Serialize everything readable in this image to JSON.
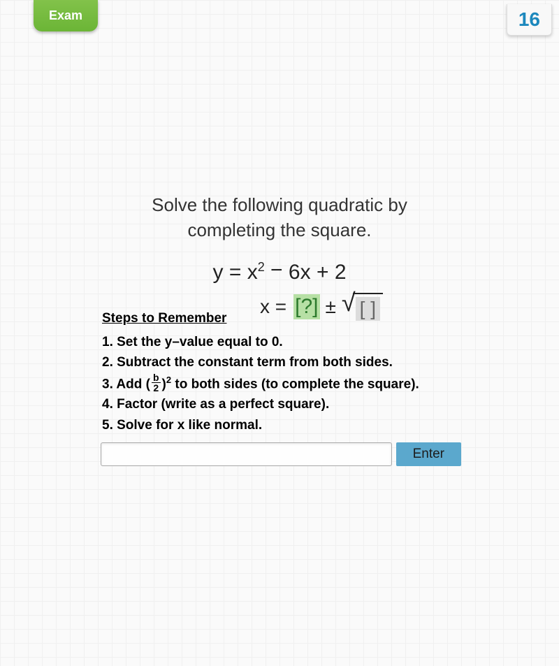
{
  "header": {
    "exam_label": "Exam",
    "counter": "16"
  },
  "problem": {
    "prompt_line1": "Solve the following quadratic by",
    "prompt_line2": "completing the square.",
    "equation": {
      "lhs": "y",
      "rhs_var": "x",
      "rhs_sq_exp": "2",
      "rhs_b_sign": "−",
      "rhs_b_coef": "6",
      "rhs_b_var": "x",
      "rhs_c_sign": "+",
      "rhs_c": "2"
    },
    "answer_template": {
      "x_label": "x =",
      "green_placeholder": "[?]",
      "pm": "±",
      "sqrt_placeholder": "[  ]"
    }
  },
  "steps": {
    "heading": "Steps to Remember",
    "items": [
      "1. Set the y–value equal to 0.",
      "2. Subtract the constant term from both sides.",
      "3. Add ",
      " to both sides (to complete the square).",
      "4. Factor (write as a perfect square).",
      "5. Solve for x like normal."
    ],
    "frac_num": "b",
    "frac_den": "2",
    "sq_exp": "2"
  },
  "controls": {
    "enter_label": "Enter",
    "input_value": ""
  },
  "colors": {
    "exam_bg_top": "#82c24a",
    "exam_bg_bottom": "#6bb536",
    "counter_text": "#1c88bd",
    "green_box_bg": "#b7e0a5",
    "green_box_text": "#2d7a2d",
    "gray_box_bg": "#dcdcdc",
    "enter_bg": "#5ba8cd",
    "page_bg": "#fafafa",
    "grid_line": "#f0f0f0"
  }
}
